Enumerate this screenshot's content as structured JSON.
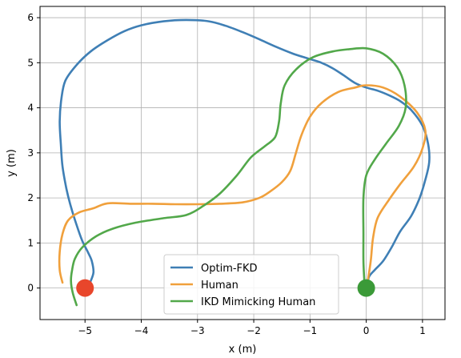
{
  "chart_data": {
    "type": "line",
    "title": "",
    "xlabel": "x (m)",
    "ylabel": "y (m)",
    "xlim": [
      -5.8,
      1.4
    ],
    "ylim": [
      -0.7,
      6.25
    ],
    "xticks": [
      -5,
      -4,
      -3,
      -2,
      -1,
      0,
      1
    ],
    "yticks": [
      0,
      1,
      2,
      3,
      4,
      5,
      6
    ],
    "xtick_labels": [
      "−5",
      "−4",
      "−3",
      "−2",
      "−1",
      "0",
      "1"
    ],
    "ytick_labels": [
      "0",
      "1",
      "2",
      "3",
      "4",
      "5",
      "6"
    ],
    "grid": true,
    "legend_position": "bottom-center",
    "series": [
      {
        "name": "Optim-FKD",
        "color": "#3f7fb5",
        "points": [
          [
            -4.95,
            0.02
          ],
          [
            -4.9,
            0.15
          ],
          [
            -4.85,
            0.35
          ],
          [
            -4.88,
            0.6
          ],
          [
            -4.95,
            0.8
          ],
          [
            -5.05,
            1.05
          ],
          [
            -5.15,
            1.4
          ],
          [
            -5.25,
            1.8
          ],
          [
            -5.33,
            2.2
          ],
          [
            -5.4,
            2.7
          ],
          [
            -5.43,
            3.2
          ],
          [
            -5.45,
            3.7
          ],
          [
            -5.42,
            4.2
          ],
          [
            -5.35,
            4.6
          ],
          [
            -5.15,
            4.95
          ],
          [
            -4.9,
            5.25
          ],
          [
            -4.6,
            5.5
          ],
          [
            -4.3,
            5.7
          ],
          [
            -4.0,
            5.83
          ],
          [
            -3.6,
            5.92
          ],
          [
            -3.2,
            5.95
          ],
          [
            -2.8,
            5.92
          ],
          [
            -2.5,
            5.82
          ],
          [
            -2.2,
            5.68
          ],
          [
            -1.9,
            5.52
          ],
          [
            -1.6,
            5.35
          ],
          [
            -1.3,
            5.2
          ],
          [
            -1.0,
            5.08
          ],
          [
            -0.8,
            5.0
          ],
          [
            -0.6,
            4.88
          ],
          [
            -0.4,
            4.72
          ],
          [
            -0.2,
            4.55
          ],
          [
            0.0,
            4.45
          ],
          [
            0.2,
            4.38
          ],
          [
            0.4,
            4.28
          ],
          [
            0.6,
            4.15
          ],
          [
            0.8,
            3.95
          ],
          [
            1.0,
            3.6
          ],
          [
            1.1,
            3.2
          ],
          [
            1.12,
            2.8
          ],
          [
            1.05,
            2.4
          ],
          [
            0.95,
            2.0
          ],
          [
            0.8,
            1.6
          ],
          [
            0.6,
            1.25
          ],
          [
            0.45,
            0.9
          ],
          [
            0.3,
            0.6
          ],
          [
            0.15,
            0.4
          ],
          [
            0.05,
            0.25
          ],
          [
            0.02,
            0.05
          ]
        ]
      },
      {
        "name": "Human",
        "color": "#f0a03c",
        "points": [
          [
            -5.4,
            0.12
          ],
          [
            -5.45,
            0.4
          ],
          [
            -5.45,
            0.8
          ],
          [
            -5.4,
            1.2
          ],
          [
            -5.3,
            1.5
          ],
          [
            -5.1,
            1.68
          ],
          [
            -4.85,
            1.77
          ],
          [
            -4.6,
            1.88
          ],
          [
            -4.2,
            1.87
          ],
          [
            -3.8,
            1.87
          ],
          [
            -3.4,
            1.86
          ],
          [
            -3.0,
            1.86
          ],
          [
            -2.6,
            1.87
          ],
          [
            -2.2,
            1.9
          ],
          [
            -1.9,
            2.0
          ],
          [
            -1.7,
            2.15
          ],
          [
            -1.5,
            2.35
          ],
          [
            -1.35,
            2.6
          ],
          [
            -1.25,
            3.0
          ],
          [
            -1.15,
            3.4
          ],
          [
            -1.0,
            3.8
          ],
          [
            -0.8,
            4.1
          ],
          [
            -0.5,
            4.35
          ],
          [
            -0.2,
            4.45
          ],
          [
            0.0,
            4.5
          ],
          [
            0.3,
            4.45
          ],
          [
            0.6,
            4.25
          ],
          [
            0.9,
            3.9
          ],
          [
            1.05,
            3.5
          ],
          [
            1.0,
            3.1
          ],
          [
            0.85,
            2.7
          ],
          [
            0.6,
            2.3
          ],
          [
            0.4,
            1.95
          ],
          [
            0.2,
            1.55
          ],
          [
            0.12,
            1.1
          ],
          [
            0.08,
            0.6
          ],
          [
            0.02,
            0.1
          ]
        ]
      },
      {
        "name": "IKD Mimicking Human",
        "color": "#52a84a",
        "points": [
          [
            -5.15,
            -0.38
          ],
          [
            -5.22,
            -0.1
          ],
          [
            -5.25,
            0.15
          ],
          [
            -5.23,
            0.4
          ],
          [
            -5.18,
            0.65
          ],
          [
            -5.05,
            0.9
          ],
          [
            -4.8,
            1.15
          ],
          [
            -4.5,
            1.32
          ],
          [
            -4.1,
            1.45
          ],
          [
            -3.6,
            1.55
          ],
          [
            -3.2,
            1.62
          ],
          [
            -2.9,
            1.82
          ],
          [
            -2.6,
            2.1
          ],
          [
            -2.3,
            2.5
          ],
          [
            -2.05,
            2.9
          ],
          [
            -1.8,
            3.15
          ],
          [
            -1.62,
            3.35
          ],
          [
            -1.55,
            3.7
          ],
          [
            -1.52,
            4.1
          ],
          [
            -1.45,
            4.5
          ],
          [
            -1.25,
            4.85
          ],
          [
            -0.95,
            5.12
          ],
          [
            -0.6,
            5.25
          ],
          [
            -0.3,
            5.3
          ],
          [
            0.0,
            5.32
          ],
          [
            0.3,
            5.2
          ],
          [
            0.55,
            4.9
          ],
          [
            0.68,
            4.5
          ],
          [
            0.7,
            4.0
          ],
          [
            0.58,
            3.6
          ],
          [
            0.35,
            3.2
          ],
          [
            0.15,
            2.85
          ],
          [
            0.0,
            2.5
          ],
          [
            -0.05,
            2.0
          ],
          [
            -0.05,
            1.2
          ],
          [
            -0.05,
            0.6
          ],
          [
            -0.03,
            0.05
          ]
        ]
      }
    ],
    "markers": [
      {
        "name": "red-endpoint",
        "color": "#e8462b",
        "x": -5.0,
        "y": 0.0
      },
      {
        "name": "green-endpoint",
        "color": "#3b9a38",
        "x": 0.0,
        "y": 0.0
      }
    ]
  }
}
